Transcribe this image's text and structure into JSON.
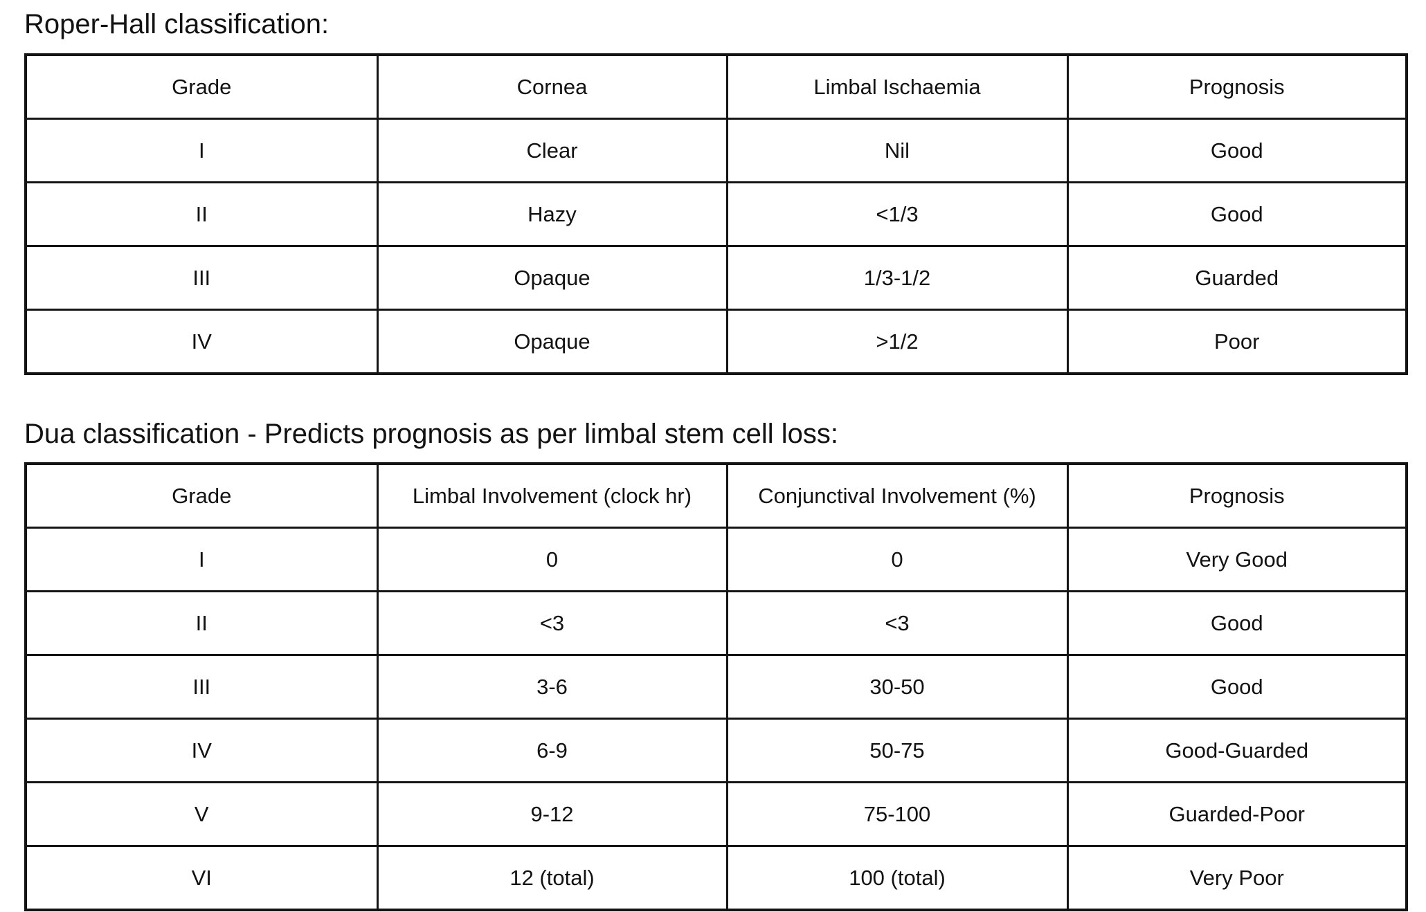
{
  "page": {
    "background": "#ffffff",
    "text_color": "#121212",
    "border_color": "#141414"
  },
  "tables": [
    {
      "title": "Roper-Hall classification:",
      "headers": [
        "Grade",
        "Cornea",
        "Limbal Ischaemia",
        "Prognosis"
      ],
      "rows": [
        [
          "I",
          "Clear",
          "Nil",
          "Good"
        ],
        [
          "II",
          "Hazy",
          "<1/3",
          "Good"
        ],
        [
          "III",
          "Opaque",
          "1/3-1/2",
          "Guarded"
        ],
        [
          "IV",
          "Opaque",
          ">1/2",
          "Poor"
        ]
      ]
    },
    {
      "title": "Dua classification - Predicts prognosis as per limbal stem cell loss:",
      "headers": [
        "Grade",
        "Limbal Involvement (clock hr)",
        "Conjunctival Involvement (%)",
        "Prognosis"
      ],
      "rows": [
        [
          "I",
          "0",
          "0",
          "Very Good"
        ],
        [
          "II",
          "<3",
          "<3",
          "Good"
        ],
        [
          "III",
          "3-6",
          "30-50",
          "Good"
        ],
        [
          "IV",
          "6-9",
          "50-75",
          "Good-Guarded"
        ],
        [
          "V",
          "9-12",
          "75-100",
          "Guarded-Poor"
        ],
        [
          "VI",
          "12 (total)",
          "100 (total)",
          "Very Poor"
        ]
      ]
    }
  ]
}
